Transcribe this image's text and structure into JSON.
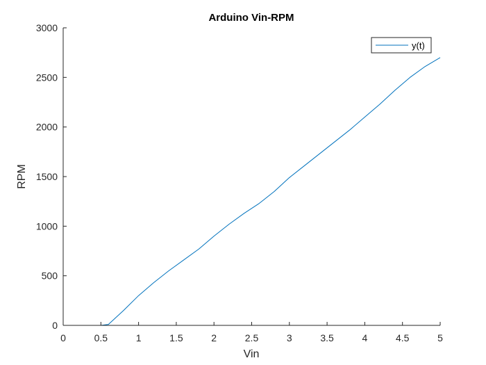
{
  "chart_data": {
    "type": "line",
    "title": "Arduino Vin-RPM",
    "xlabel": "Vin",
    "ylabel": "RPM",
    "xlim": [
      0,
      5
    ],
    "ylim": [
      0,
      3000
    ],
    "xticks": [
      0,
      0.5,
      1,
      1.5,
      2,
      2.5,
      3,
      3.5,
      4,
      4.5,
      5
    ],
    "xtick_labels": [
      "0",
      "0.5",
      "1",
      "1.5",
      "2",
      "2.5",
      "3",
      "3.5",
      "4",
      "4.5",
      "5"
    ],
    "yticks": [
      0,
      500,
      1000,
      1500,
      2000,
      2500,
      3000
    ],
    "ytick_labels": [
      "0",
      "500",
      "1000",
      "1500",
      "2000",
      "2500",
      "3000"
    ],
    "grid": false,
    "legend_position": "top-right",
    "series": [
      {
        "name": "y(t)",
        "color": "#0072BD",
        "x": [
          0,
          0.5,
          0.6,
          0.8,
          1.0,
          1.2,
          1.4,
          1.6,
          1.8,
          2.0,
          2.2,
          2.4,
          2.6,
          2.8,
          3.0,
          3.2,
          3.4,
          3.6,
          3.8,
          4.0,
          4.2,
          4.4,
          4.6,
          4.8,
          5.0
        ],
        "y": [
          0,
          0,
          10,
          150,
          300,
          430,
          550,
          660,
          770,
          900,
          1020,
          1130,
          1230,
          1350,
          1490,
          1610,
          1730,
          1850,
          1970,
          2100,
          2230,
          2370,
          2500,
          2610,
          2700
        ]
      }
    ]
  }
}
